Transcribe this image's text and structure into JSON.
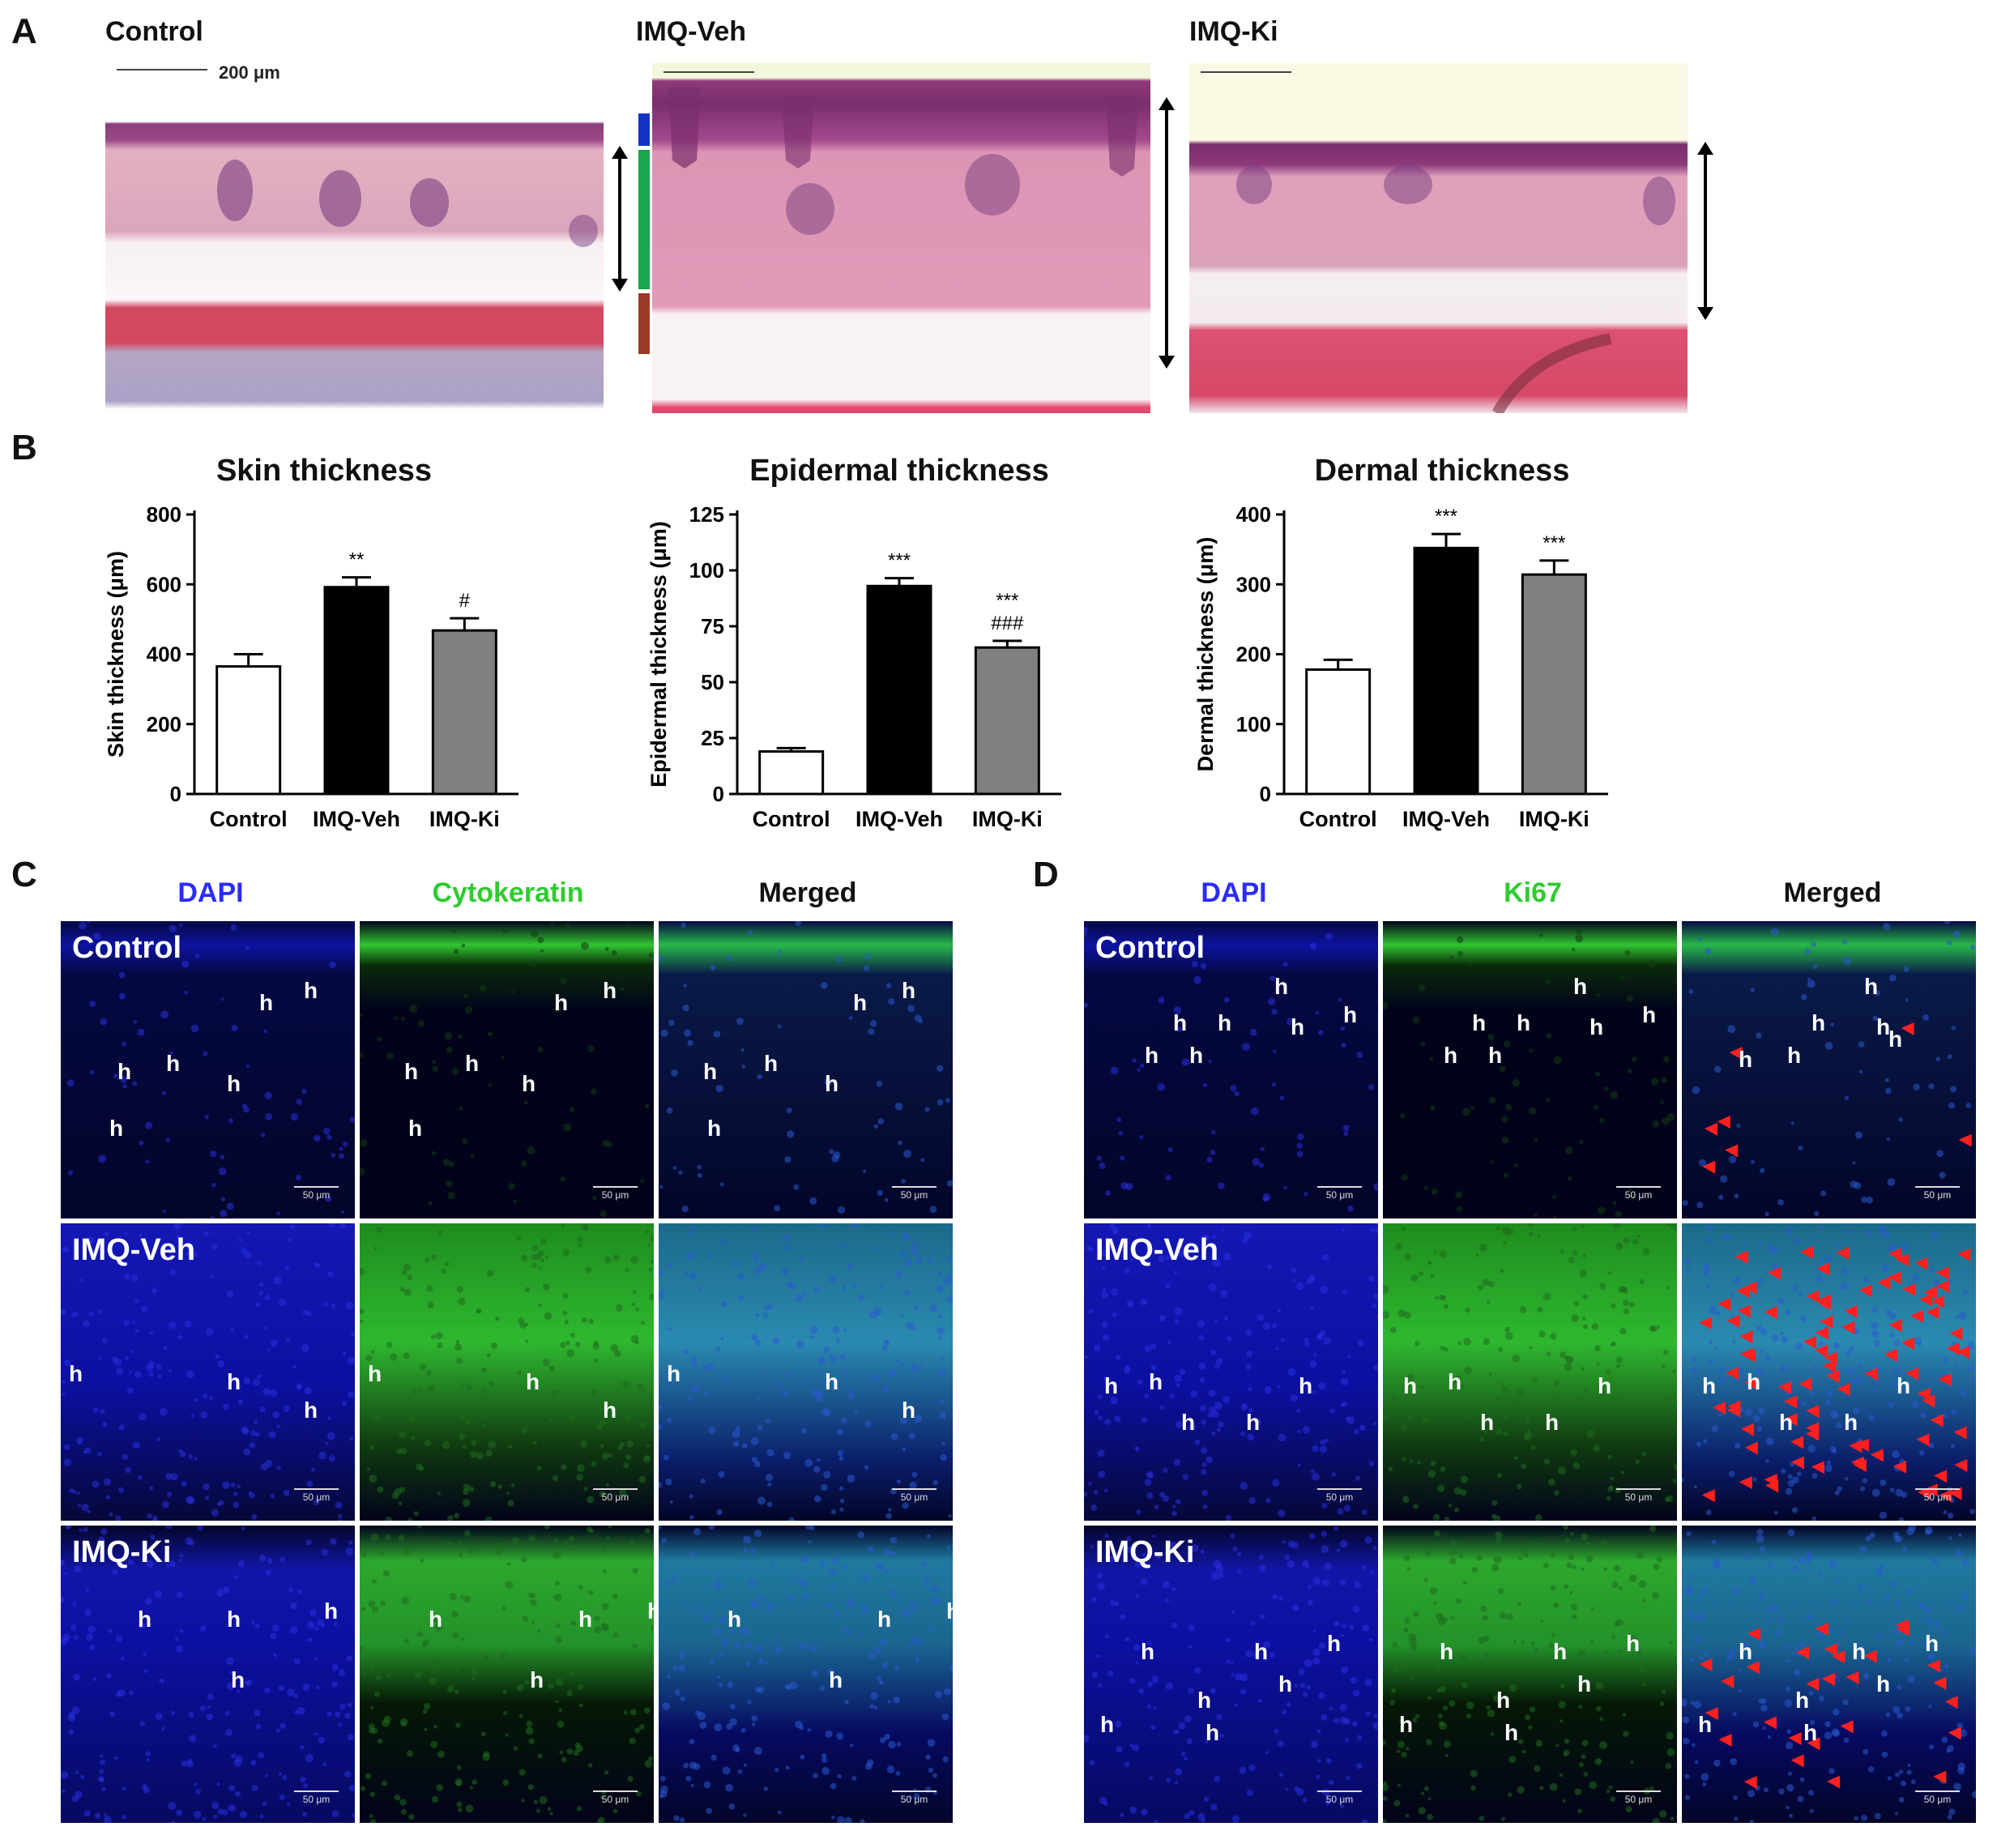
{
  "panels": {
    "A": "A",
    "B": "B",
    "C": "C",
    "D": "D"
  },
  "panel_a": {
    "groups": [
      "Control",
      "IMQ-Veh",
      "IMQ-Ki"
    ],
    "scale_label": "200 μm",
    "layer_colors": [
      "#1434c8",
      "#1aa64a",
      "#9a3b2a"
    ]
  },
  "panel_b": {
    "charts": [
      {
        "title": "Skin thickness",
        "ylabel": "Skin thickness (μm)"
      },
      {
        "title": "Epidermal thickness",
        "ylabel": "Epidermal thickness (μm)"
      },
      {
        "title": "Dermal thickness",
        "ylabel": "Dermal thickness (μm)"
      }
    ]
  },
  "chart_data": [
    {
      "type": "bar",
      "title": "Skin thickness",
      "ylabel": "Skin thickness (μm)",
      "categories": [
        "Control",
        "IMQ-Veh",
        "IMQ-Ki"
      ],
      "values": [
        365,
        592,
        468
      ],
      "errors": [
        35,
        28,
        35
      ],
      "ylim": [
        0,
        800
      ],
      "yticks": [
        0,
        200,
        400,
        600,
        800
      ],
      "annotations": [
        "",
        "**",
        "#"
      ],
      "bar_colors": [
        "#ffffff",
        "#000000",
        "#808080"
      ]
    },
    {
      "type": "bar",
      "title": "Epidermal thickness",
      "ylabel": "Epidermal thickness (μm)",
      "categories": [
        "Control",
        "IMQ-Veh",
        "IMQ-Ki"
      ],
      "values": [
        19,
        93,
        65.5
      ],
      "errors": [
        1.5,
        3.5,
        3
      ],
      "ylim": [
        0,
        125
      ],
      "yticks": [
        0,
        25,
        50,
        75,
        100,
        125
      ],
      "annotations": [
        "",
        "***",
        "***\n###"
      ],
      "bar_colors": [
        "#ffffff",
        "#000000",
        "#808080"
      ]
    },
    {
      "type": "bar",
      "title": "Dermal thickness",
      "ylabel": "Dermal thickness (μm)",
      "categories": [
        "Control",
        "IMQ-Veh",
        "IMQ-Ki"
      ],
      "values": [
        178,
        352,
        314
      ],
      "errors": [
        14,
        20,
        20
      ],
      "ylim": [
        0,
        400
      ],
      "yticks": [
        0,
        100,
        200,
        300,
        400
      ],
      "annotations": [
        "",
        "***",
        "***"
      ],
      "bar_colors": [
        "#ffffff",
        "#000000",
        "#808080"
      ]
    }
  ],
  "panel_c": {
    "columns": [
      {
        "label": "DAPI",
        "color": "#2b2bff"
      },
      {
        "label": "Cytokeratin",
        "color": "#2ecc2e"
      },
      {
        "label": "Merged",
        "color": "#111111"
      }
    ],
    "rows": [
      "Control",
      "IMQ-Veh",
      "IMQ-Ki"
    ],
    "scale_label": "50 μm",
    "marker": "h"
  },
  "panel_d": {
    "columns": [
      {
        "label": "DAPI",
        "color": "#2b2bff"
      },
      {
        "label": "Ki67",
        "color": "#2ecc2e"
      },
      {
        "label": "Merged",
        "color": "#111111"
      }
    ],
    "rows": [
      "Control",
      "IMQ-Veh",
      "IMQ-Ki"
    ],
    "scale_label": "50 μm",
    "marker": "h"
  }
}
